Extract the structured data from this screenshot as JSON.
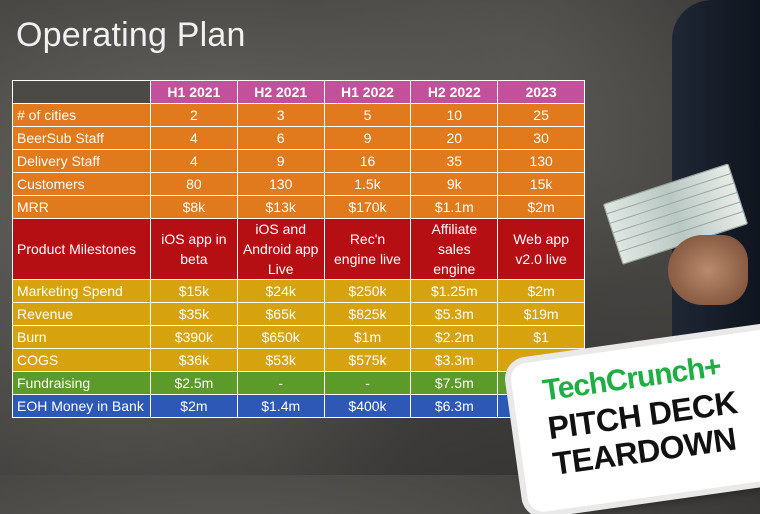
{
  "title": "Operating Plan",
  "table": {
    "headers": [
      "H1 2021",
      "H2 2021",
      "H1 2022",
      "H2 2022",
      "2023"
    ],
    "rows": [
      {
        "label": "# of cities",
        "values": [
          "2",
          "3",
          "5",
          "10",
          "25"
        ]
      },
      {
        "label": "BeerSub Staff",
        "values": [
          "4",
          "6",
          "9",
          "20",
          "30"
        ]
      },
      {
        "label": "Delivery Staff",
        "values": [
          "4",
          "9",
          "16",
          "35",
          "130"
        ]
      },
      {
        "label": "Customers",
        "values": [
          "80",
          "130",
          "1.5k",
          "9k",
          "15k"
        ]
      },
      {
        "label": "MRR",
        "values": [
          "$8k",
          "$13k",
          "$170k",
          "$1.1m",
          "$2m"
        ]
      },
      {
        "label": "Product Milestones",
        "values": [
          "iOS app in beta",
          "iOS and Android app Live",
          "Rec'n engine live",
          "Affiliate sales engine",
          "Web app v2.0 live"
        ]
      },
      {
        "label": "Marketing Spend",
        "values": [
          "$15k",
          "$24k",
          "$250k",
          "$1.25m",
          "$2m"
        ]
      },
      {
        "label": "Revenue",
        "values": [
          "$35k",
          "$65k",
          "$825k",
          "$5.3m",
          "$19m"
        ]
      },
      {
        "label": "Burn",
        "values": [
          "$390k",
          "$650k",
          "$1m",
          "$2.2m",
          "$1"
        ]
      },
      {
        "label": "COGS",
        "values": [
          "$36k",
          "$53k",
          "$575k",
          "$3.3m",
          ""
        ]
      },
      {
        "label": "Fundraising",
        "values": [
          "$2.5m",
          "-",
          "-",
          "$7.5m",
          ""
        ]
      },
      {
        "label": "EOH Money in Bank",
        "values": [
          "$2m",
          "$1.4m",
          "$400k",
          "$6.3m",
          ""
        ]
      }
    ]
  },
  "badge": {
    "brand": "TechCrunch+",
    "line1": "PITCH DECK",
    "line2": "TEARDOWN"
  },
  "colors": {
    "header": "#c2509a",
    "orange": "#e1791d",
    "red": "#b50f13",
    "yellow": "#d6a30e",
    "green": "#5c9a2a",
    "blue": "#2d58b5",
    "brand_green": "#1fae43"
  }
}
